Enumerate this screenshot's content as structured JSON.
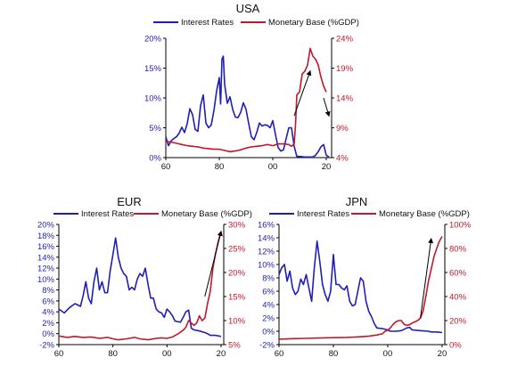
{
  "colors": {
    "interest": "#1f1fb4",
    "monetary": "#c0182a",
    "arrow": "#000000",
    "axis": "#000000"
  },
  "chart_data": [
    {
      "type": "line",
      "title": "USA",
      "x_ticks": [
        "60",
        "80",
        "00",
        "20"
      ],
      "x_tick_values": [
        1960,
        1980,
        2000,
        2020
      ],
      "xlim": [
        1960,
        2022
      ],
      "y_left": {
        "ticks": [
          "0%",
          "5%",
          "10%",
          "15%",
          "20%"
        ],
        "tick_values": [
          0,
          5,
          10,
          15,
          20
        ],
        "lim": [
          0,
          20
        ]
      },
      "y_right": {
        "ticks": [
          "4%",
          "9%",
          "14%",
          "19%",
          "24%"
        ],
        "tick_values": [
          4,
          9,
          14,
          19,
          24
        ],
        "lim": [
          4,
          24
        ]
      },
      "series": [
        {
          "name": "Interest Rates",
          "axis": "left",
          "color": "#1f1fb4",
          "x": [
            1960,
            1961,
            1962,
            1963,
            1964,
            1965,
            1966,
            1967,
            1968,
            1969,
            1970,
            1971,
            1972,
            1973,
            1974,
            1975,
            1976,
            1977,
            1978,
            1979,
            1980,
            1980.5,
            1981,
            1981.5,
            1982,
            1983,
            1984,
            1985,
            1986,
            1987,
            1988,
            1989,
            1990,
            1991,
            1992,
            1993,
            1994,
            1995,
            1996,
            1997,
            1998,
            1999,
            2000,
            2001,
            2002,
            2003,
            2004,
            2005,
            2006,
            2007,
            2008,
            2009,
            2010,
            2012,
            2014,
            2015,
            2016,
            2017,
            2018,
            2019,
            2020,
            2021
          ],
          "y": [
            3.5,
            2.0,
            2.8,
            3.2,
            3.5,
            4.1,
            5.1,
            4.2,
            5.7,
            8.2,
            7.2,
            4.7,
            4.4,
            8.7,
            10.5,
            5.8,
            5.0,
            5.5,
            7.9,
            11.2,
            13.4,
            9.0,
            16.5,
            17.0,
            12.3,
            9.1,
            10.2,
            8.1,
            6.8,
            6.7,
            7.6,
            9.2,
            8.1,
            5.7,
            3.5,
            3.0,
            4.2,
            5.8,
            5.3,
            5.5,
            5.4,
            5.0,
            6.2,
            3.9,
            1.7,
            1.1,
            1.3,
            3.2,
            5.0,
            5.0,
            1.9,
            0.2,
            0.2,
            0.1,
            0.1,
            0.1,
            0.4,
            1.0,
            1.8,
            2.2,
            0.4,
            0.1
          ]
        },
        {
          "name": "Monetary Base (%GDP)",
          "axis": "right",
          "color": "#c0182a",
          "x": [
            1960,
            1962,
            1964,
            1966,
            1968,
            1970,
            1972,
            1974,
            1976,
            1978,
            1980,
            1982,
            1984,
            1986,
            1988,
            1990,
            1992,
            1994,
            1996,
            1998,
            2000,
            2002,
            2004,
            2006,
            2007,
            2008,
            2008.5,
            2009,
            2010,
            2011,
            2012,
            2013,
            2014,
            2015,
            2016,
            2017,
            2018,
            2019,
            2020
          ],
          "y": [
            6.7,
            6.6,
            6.4,
            6.2,
            6.0,
            5.9,
            5.8,
            5.6,
            5.5,
            5.4,
            5.4,
            5.2,
            5.0,
            5.1,
            5.3,
            5.6,
            5.8,
            5.9,
            6.0,
            6.2,
            6.0,
            6.3,
            6.3,
            6.2,
            5.9,
            6.3,
            9.5,
            14.5,
            15.0,
            18.0,
            18.5,
            19.5,
            22.3,
            21.0,
            20.5,
            19.5,
            17.5,
            16.0,
            15.0
          ]
        }
      ],
      "annotations": [
        {
          "type": "arrow",
          "from": [
            2008,
            11
          ],
          "to": [
            2014,
            18.5
          ]
        },
        {
          "type": "arrow",
          "from": [
            2019,
            14
          ],
          "to": [
            2021,
            11
          ]
        }
      ]
    },
    {
      "type": "line",
      "title": "EUR",
      "x_ticks": [
        "60",
        "80",
        "00",
        "20"
      ],
      "x_tick_values": [
        1960,
        1980,
        2000,
        2020
      ],
      "xlim": [
        1960,
        2021
      ],
      "y_left": {
        "ticks": [
          "-2%",
          "0%",
          "2%",
          "4%",
          "6%",
          "8%",
          "10%",
          "12%",
          "14%",
          "16%",
          "18%",
          "20%"
        ],
        "tick_values": [
          -2,
          0,
          2,
          4,
          6,
          8,
          10,
          12,
          14,
          16,
          18,
          20
        ],
        "lim": [
          -2,
          20
        ]
      },
      "y_right": {
        "ticks": [
          "5%",
          "10%",
          "15%",
          "20%",
          "25%",
          "30%"
        ],
        "tick_values": [
          5,
          10,
          15,
          20,
          25,
          30
        ],
        "lim": [
          5,
          30
        ]
      },
      "series": [
        {
          "name": "Interest Rates",
          "axis": "left",
          "color": "#1f1fb4",
          "x": [
            1960,
            1962,
            1964,
            1966,
            1968,
            1969,
            1970,
            1971,
            1972,
            1973,
            1974,
            1975,
            1976,
            1977,
            1978,
            1979,
            1980,
            1981,
            1982,
            1983,
            1984,
            1985,
            1986,
            1987,
            1988,
            1989,
            1990,
            1991,
            1992,
            1993,
            1994,
            1995,
            1996,
            1997,
            1998,
            1999,
            2000,
            2001,
            2002,
            2003,
            2005,
            2006,
            2007,
            2008,
            2009,
            2010,
            2012,
            2014,
            2015,
            2016,
            2018,
            2020
          ],
          "y": [
            4.5,
            3.8,
            4.8,
            5.5,
            5.0,
            7.0,
            9.5,
            6.5,
            5.5,
            9.5,
            12.0,
            8.0,
            9.5,
            7.5,
            7.5,
            11.5,
            14.5,
            17.5,
            14.0,
            12.0,
            11.0,
            10.5,
            8.0,
            8.5,
            8.0,
            10.0,
            11.0,
            10.5,
            12.0,
            9.0,
            6.5,
            6.5,
            4.5,
            4.0,
            3.8,
            3.0,
            4.5,
            4.0,
            3.3,
            2.3,
            2.1,
            3.0,
            4.0,
            4.3,
            1.0,
            0.7,
            0.5,
            0.2,
            0.0,
            -0.3,
            -0.3,
            -0.5
          ]
        },
        {
          "name": "Monetary Base (%GDP)",
          "axis": "right",
          "color": "#c0182a",
          "x": [
            1960,
            1963,
            1966,
            1969,
            1972,
            1975,
            1978,
            1980,
            1982,
            1985,
            1988,
            1990,
            1993,
            1996,
            1998,
            2000,
            2002,
            2004,
            2006,
            2007,
            2008,
            2009,
            2010,
            2011,
            2012,
            2013,
            2014,
            2015,
            2016,
            2017,
            2018,
            2019,
            2020
          ],
          "y": [
            6.8,
            6.5,
            6.7,
            6.5,
            6.6,
            6.3,
            6.5,
            6.2,
            6.0,
            6.2,
            6.5,
            6.2,
            6.0,
            6.3,
            6.4,
            6.3,
            6.6,
            7.2,
            8.0,
            8.6,
            10.0,
            9.5,
            9.0,
            9.5,
            11.0,
            10.0,
            10.5,
            13.5,
            16.0,
            21.0,
            24.0,
            26.5,
            28.5
          ]
        }
      ],
      "annotations": [
        {
          "type": "arrow",
          "from": [
            2014,
            15
          ],
          "to": [
            2020,
            28.5
          ]
        }
      ]
    },
    {
      "type": "line",
      "title": "JPN",
      "x_ticks": [
        "60",
        "80",
        "00",
        "20"
      ],
      "x_tick_values": [
        1960,
        1980,
        2000,
        2020
      ],
      "xlim": [
        1960,
        2021
      ],
      "y_left": {
        "ticks": [
          "-2%",
          "0%",
          "2%",
          "4%",
          "6%",
          "8%",
          "10%",
          "12%",
          "14%",
          "16%"
        ],
        "tick_values": [
          -2,
          0,
          2,
          4,
          6,
          8,
          10,
          12,
          14,
          16
        ],
        "lim": [
          -2,
          16
        ]
      },
      "y_right": {
        "ticks": [
          "0%",
          "20%",
          "40%",
          "60%",
          "80%",
          "100%"
        ],
        "tick_values": [
          0,
          20,
          40,
          60,
          80,
          100
        ],
        "lim": [
          0,
          100
        ]
      },
      "series": [
        {
          "name": "Interest Rates",
          "axis": "left",
          "color": "#1f1fb4",
          "x": [
            1960,
            1961,
            1962,
            1963,
            1964,
            1965,
            1966,
            1967,
            1968,
            1969,
            1970,
            1971,
            1972,
            1973,
            1974,
            1975,
            1976,
            1977,
            1978,
            1979,
            1980,
            1981,
            1982,
            1983,
            1984,
            1985,
            1986,
            1987,
            1988,
            1989,
            1990,
            1991,
            1992,
            1993,
            1994,
            1995,
            1996,
            1998,
            2000,
            2001,
            2003,
            2005,
            2006,
            2007,
            2008,
            2009,
            2012,
            2015,
            2016,
            2018,
            2020
          ],
          "y": [
            8.5,
            9.5,
            10.0,
            7.5,
            9.0,
            6.5,
            5.5,
            6.0,
            7.8,
            7.0,
            8.5,
            6.5,
            4.5,
            9.5,
            13.5,
            10.5,
            7.0,
            5.5,
            4.5,
            6.0,
            11.5,
            7.0,
            7.0,
            6.5,
            6.2,
            6.8,
            4.5,
            3.8,
            4.0,
            6.0,
            8.0,
            7.5,
            4.5,
            3.0,
            2.2,
            1.2,
            0.5,
            0.4,
            0.2,
            0.0,
            0.0,
            0.1,
            0.3,
            0.5,
            0.6,
            0.2,
            0.1,
            0.0,
            -0.1,
            -0.1,
            -0.2
          ]
        },
        {
          "name": "Monetary Base (%GDP)",
          "axis": "right",
          "color": "#c0182a",
          "x": [
            1960,
            1965,
            1970,
            1975,
            1980,
            1985,
            1990,
            1993,
            1996,
            1998,
            1999,
            2000,
            2001,
            2002,
            2003,
            2004,
            2005,
            2006,
            2007,
            2008,
            2009,
            2010,
            2011,
            2012,
            2013,
            2014,
            2015,
            2016,
            2017,
            2018,
            2019,
            2020
          ],
          "y": [
            4.5,
            5.0,
            5.2,
            5.5,
            5.8,
            6.0,
            6.5,
            7.0,
            8.0,
            9.0,
            11.0,
            12.0,
            14.0,
            17.0,
            19.0,
            20.0,
            20.0,
            17.0,
            16.0,
            16.5,
            18.0,
            19.0,
            20.0,
            22.0,
            28.0,
            40.0,
            53.0,
            63.0,
            73.0,
            80.0,
            86.0,
            90.0
          ]
        }
      ],
      "annotations": [
        {
          "type": "arrow",
          "from": [
            2012,
            22
          ],
          "to": [
            2016,
            88
          ]
        }
      ]
    }
  ]
}
